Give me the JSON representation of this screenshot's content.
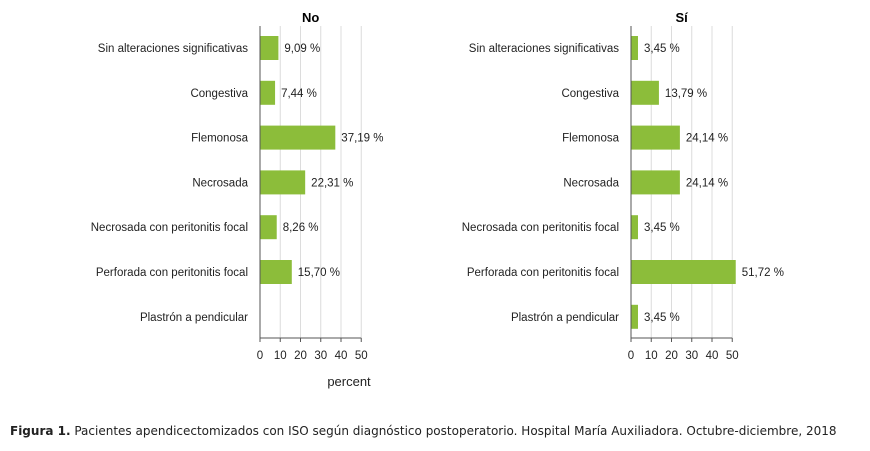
{
  "chart_data": {
    "type": "bar",
    "orientation": "horizontal",
    "xlabel": "percent",
    "xlim": [
      0,
      50
    ],
    "xticks": [
      0,
      10,
      20,
      30,
      40,
      50
    ],
    "grid": true,
    "bar_color": "#8cbd3a",
    "categories": [
      "Sin alteraciones significativas",
      "Congestiva",
      "Flemonosa",
      "Necrosada",
      "Necrosada con peritonitis focal",
      "Perforada con peritonitis focal",
      "Plastrón a pendicular"
    ],
    "panels": [
      {
        "title": "No",
        "values": [
          9.09,
          7.44,
          37.19,
          22.31,
          8.26,
          15.7,
          null
        ],
        "labels": [
          "9,09 %",
          "7,44 %",
          "37,19 %",
          "22,31 %",
          "8,26 %",
          "15,70 %",
          ""
        ]
      },
      {
        "title": "Sí",
        "values": [
          3.45,
          13.79,
          24.14,
          24.14,
          3.45,
          51.72,
          3.45
        ],
        "labels": [
          "3,45 %",
          "13,79 %",
          "24,14 %",
          "24,14 %",
          "3,45 %",
          "51,72 %",
          "3,45 %"
        ]
      }
    ]
  },
  "caption": {
    "label": "Figura 1.",
    "text": " Pacientes apendicectomizados con ISO según diagnóstico postoperatorio. Hospital María Auxiliadora. Octubre-diciembre, 2018"
  }
}
